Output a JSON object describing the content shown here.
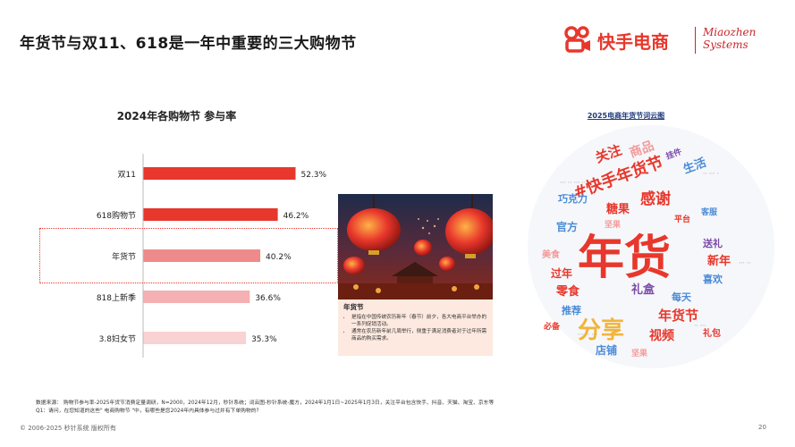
{
  "page": {
    "title": "年货节与双11、618是一年中重要的三大购物节",
    "page_number": "20",
    "footer": "© 2006-2025 秒针系统 版权所有"
  },
  "logo": {
    "kuaishou_text": "快手电商",
    "miaozhen_line1": "Miaozhen",
    "miaozhen_line2": "Systems"
  },
  "chart_data": {
    "type": "bar",
    "orientation": "horizontal",
    "title": "2024年各购物节 参与率",
    "categories": [
      "双11",
      "618购物节",
      "年货节",
      "818上新季",
      "3.8妇女节"
    ],
    "values": [
      52.3,
      46.2,
      40.2,
      36.6,
      35.3
    ],
    "value_suffix": "%",
    "highlighted_category": "年货节",
    "colors": [
      "#e8372c",
      "#e8372c",
      "#ee8a8c",
      "#f4b0b2",
      "#f9d2d3"
    ],
    "grid": false,
    "legend": "none"
  },
  "photo_caption": {
    "title": "年货节",
    "bullets": [
      "是指在中国传统农历新年（春节）前夕，各大电商平台举办的一系列促销活动。",
      "通常在农历新年前几周举行，侧重于满足消费者对于过年所需商品的购买需求。"
    ]
  },
  "word_cloud": {
    "title": "2025电商年货节词云图"
  },
  "source_note": {
    "line1": "数据来源：  购物节参与率-2025年货节消费定量调研，N=2000，2024年12月，秒针系统；词云图-秒针系统-魔方，2024年1月1日~2025年1月3日，关注平台包含快手、抖音、天猫、淘宝、京东等",
    "line2": "Q1：请问，在您知道的这些\" 电商购物节 \"中，有哪些是您2024年内具体参与过并有下单购物的?"
  }
}
